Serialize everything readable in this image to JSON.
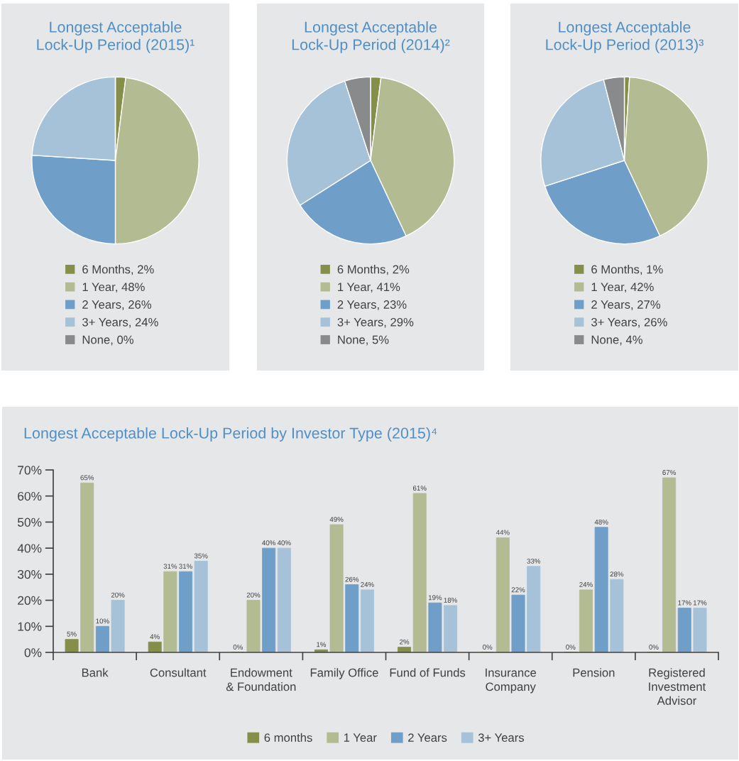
{
  "chart_data": [
    {
      "type": "pie",
      "title": "Longest Acceptable\nLock-Up Period (2015)¹",
      "categories": [
        "6 Months, 2%",
        "1 Year, 48%",
        "2 Years, 26%",
        "3+ Years, 24%",
        "None, 0%"
      ],
      "values": [
        2,
        48,
        26,
        24,
        0
      ],
      "colors": [
        "#858f4a",
        "#b3bb93",
        "#6f9fc8",
        "#a6c2d9",
        "#888a8c"
      ],
      "legend": "bottom"
    },
    {
      "type": "pie",
      "title": "Longest Acceptable\nLock-Up Period (2014)²",
      "categories": [
        "6 Months, 2%",
        "1 Year, 41%",
        "2 Years, 23%",
        "3+ Years, 29%",
        "None, 5%"
      ],
      "values": [
        2,
        41,
        23,
        29,
        5
      ],
      "colors": [
        "#858f4a",
        "#b3bb93",
        "#6f9fc8",
        "#a6c2d9",
        "#888a8c"
      ],
      "legend": "bottom"
    },
    {
      "type": "pie",
      "title": "Longest Acceptable\nLock-Up Period (2013)³",
      "categories": [
        "6 Months, 1%",
        "1 Year, 42%",
        "2 Years, 27%",
        "3+ Years, 26%",
        "None, 4%"
      ],
      "values": [
        1,
        42,
        27,
        26,
        4
      ],
      "colors": [
        "#858f4a",
        "#b3bb93",
        "#6f9fc8",
        "#a6c2d9",
        "#888a8c"
      ],
      "legend": "bottom"
    },
    {
      "type": "bar",
      "title": "Longest Acceptable Lock-Up Period by Investor Type (2015)⁴",
      "categories": [
        "Bank",
        "Consultant",
        "Endowment\n& Foundation",
        "Family Office",
        "Fund of Funds",
        "Insurance\nCompany",
        "Pension",
        "Registered\nInvestment\nAdvisor"
      ],
      "series": [
        {
          "name": "6 months",
          "color": "#858f4a",
          "values": [
            5,
            4,
            0,
            1,
            2,
            0,
            0,
            0
          ],
          "value_labels": [
            "5%",
            "4%",
            "0%",
            "1%",
            "2%",
            "0%",
            "0%",
            "0%"
          ]
        },
        {
          "name": "1 Year",
          "color": "#b3bb93",
          "values": [
            65,
            31,
            20,
            49,
            61,
            44,
            24,
            67
          ],
          "value_labels": [
            "65%",
            "31%",
            "20%",
            "49%",
            "61%",
            "44%",
            "24%",
            "67%"
          ]
        },
        {
          "name": "2 Years",
          "color": "#6f9fc8",
          "values": [
            10,
            31,
            40,
            26,
            19,
            22,
            48,
            17
          ],
          "value_labels": [
            "10%",
            "31%",
            "40%",
            "26%",
            "19%",
            "22%",
            "48%",
            "17%"
          ]
        },
        {
          "name": "3+ Years",
          "color": "#a6c2d9",
          "values": [
            20,
            35,
            40,
            24,
            18,
            33,
            28,
            17
          ],
          "value_labels": [
            "20%",
            "35%",
            "40%",
            "24%",
            "18%",
            "33%",
            "28%",
            "17%"
          ]
        }
      ],
      "ylim": [
        0,
        70
      ],
      "yticks": [
        {
          "value": 0,
          "label": "0%"
        },
        {
          "value": 10,
          "label": "10%"
        },
        {
          "value": 20,
          "label": "20%"
        },
        {
          "value": 30,
          "label": "30%"
        },
        {
          "value": 40,
          "label": "40%"
        },
        {
          "value": 50,
          "label": "50%"
        },
        {
          "value": 60,
          "label": "60%"
        },
        {
          "value": 70,
          "label": "70%"
        }
      ],
      "legend": "bottom"
    }
  ]
}
